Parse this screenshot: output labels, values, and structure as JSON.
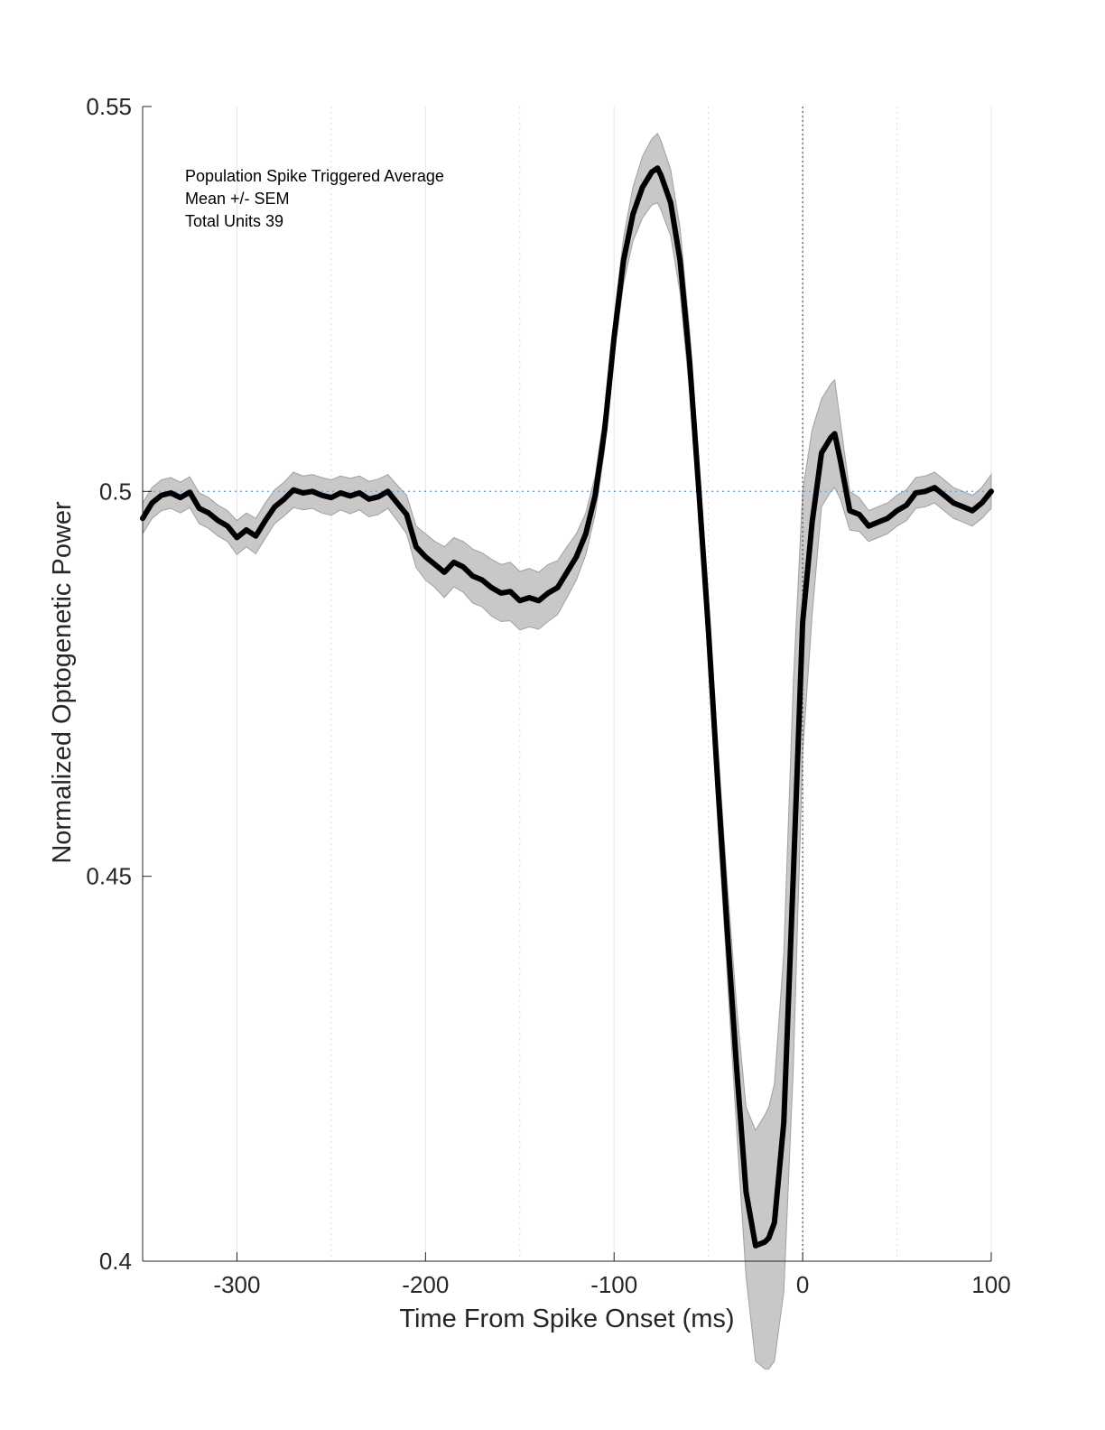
{
  "chart_data": {
    "type": "line",
    "title": "",
    "xlabel": "Time From Spike Onset (ms)",
    "ylabel": "Normalized Optogenetic Power",
    "xlim": [
      -350,
      100
    ],
    "ylim": [
      0.4,
      0.55
    ],
    "xticks": [
      -300,
      -200,
      -100,
      0,
      100
    ],
    "xtick_labels": [
      "-300",
      "-200",
      "-100",
      "0",
      "100"
    ],
    "yticks": [
      0.4,
      0.45,
      0.5,
      0.55
    ],
    "ytick_labels": [
      "0.4",
      "0.45",
      "0.5",
      "0.55"
    ],
    "grid": "vertical",
    "minor_grid_x": [
      -250,
      -150,
      -50,
      50
    ],
    "reference_line_y": 0.5,
    "reference_line_x": 0,
    "annotations": [
      "Population Spike Triggered Average",
      "Mean +/- SEM",
      "Total Units 39"
    ],
    "series": [
      {
        "style": "mean",
        "color": "#000000",
        "x": [
          -350,
          -345,
          -340,
          -335,
          -330,
          -325,
          -320,
          -315,
          -310,
          -305,
          -300,
          -295,
          -290,
          -285,
          -280,
          -275,
          -270,
          -265,
          -260,
          -255,
          -250,
          -245,
          -240,
          -235,
          -230,
          -225,
          -220,
          -215,
          -210,
          -205,
          -200,
          -195,
          -190,
          -185,
          -180,
          -175,
          -170,
          -165,
          -160,
          -155,
          -150,
          -145,
          -140,
          -135,
          -130,
          -125,
          -120,
          -115,
          -110,
          -105,
          -100,
          -95,
          -90,
          -85,
          -80,
          -77,
          -75,
          -70,
          -65,
          -60,
          -55,
          -50,
          -45,
          -40,
          -35,
          -30,
          -25,
          -20,
          -18,
          -15,
          -10,
          -5,
          0,
          5,
          10,
          15,
          17,
          20,
          25,
          30,
          35,
          40,
          45,
          50,
          55,
          60,
          65,
          70,
          75,
          80,
          85,
          90,
          95,
          100
        ],
        "values": [
          0.4965,
          0.4985,
          0.4995,
          0.4998,
          0.4992,
          0.4999,
          0.4978,
          0.4972,
          0.4962,
          0.4955,
          0.494,
          0.495,
          0.4942,
          0.4962,
          0.498,
          0.499,
          0.5002,
          0.4998,
          0.5,
          0.4995,
          0.4992,
          0.4998,
          0.4994,
          0.4998,
          0.499,
          0.4993,
          0.5,
          0.4985,
          0.497,
          0.4928,
          0.4915,
          0.4905,
          0.4895,
          0.4908,
          0.4902,
          0.489,
          0.4885,
          0.4875,
          0.4868,
          0.487,
          0.4858,
          0.4862,
          0.4858,
          0.4868,
          0.4875,
          0.4895,
          0.4915,
          0.4945,
          0.4995,
          0.508,
          0.52,
          0.53,
          0.536,
          0.5395,
          0.5415,
          0.542,
          0.541,
          0.5375,
          0.53,
          0.517,
          0.5,
          0.482,
          0.462,
          0.443,
          0.425,
          0.409,
          0.402,
          0.4025,
          0.403,
          0.405,
          0.418,
          0.45,
          0.483,
          0.496,
          0.505,
          0.507,
          0.5075,
          0.504,
          0.4975,
          0.497,
          0.4955,
          0.496,
          0.4965,
          0.4975,
          0.4982,
          0.4998,
          0.5,
          0.5005,
          0.4995,
          0.4985,
          0.498,
          0.4975,
          0.4985,
          0.5
        ]
      },
      {
        "style": "sem_upper",
        "color": "#c8c8c8",
        "x": [
          -350,
          -345,
          -340,
          -335,
          -330,
          -325,
          -320,
          -315,
          -310,
          -305,
          -300,
          -295,
          -290,
          -285,
          -280,
          -275,
          -270,
          -265,
          -260,
          -255,
          -250,
          -245,
          -240,
          -235,
          -230,
          -225,
          -220,
          -215,
          -210,
          -205,
          -200,
          -195,
          -190,
          -185,
          -180,
          -175,
          -170,
          -165,
          -160,
          -155,
          -150,
          -145,
          -140,
          -135,
          -130,
          -125,
          -120,
          -115,
          -110,
          -105,
          -100,
          -95,
          -90,
          -85,
          -80,
          -77,
          -75,
          -70,
          -65,
          -60,
          -55,
          -50,
          -45,
          -40,
          -35,
          -30,
          -25,
          -20,
          -18,
          -15,
          -10,
          -5,
          0,
          5,
          10,
          15,
          17,
          20,
          25,
          30,
          35,
          40,
          45,
          50,
          55,
          60,
          65,
          70,
          75,
          80,
          85,
          90,
          95,
          100
        ],
        "values": [
          0.4985,
          0.5005,
          0.5015,
          0.5018,
          0.5012,
          0.5019,
          0.4998,
          0.4992,
          0.4982,
          0.4975,
          0.4962,
          0.4972,
          0.4965,
          0.4985,
          0.5002,
          0.5012,
          0.5025,
          0.502,
          0.5022,
          0.5018,
          0.5015,
          0.502,
          0.5017,
          0.502,
          0.5013,
          0.5016,
          0.5022,
          0.5008,
          0.4995,
          0.4955,
          0.4945,
          0.4935,
          0.4928,
          0.494,
          0.4935,
          0.4925,
          0.492,
          0.4912,
          0.4905,
          0.4908,
          0.4896,
          0.49,
          0.4895,
          0.4905,
          0.491,
          0.4928,
          0.4945,
          0.4972,
          0.502,
          0.5105,
          0.5225,
          0.533,
          0.5395,
          0.5435,
          0.5458,
          0.5465,
          0.5455,
          0.5418,
          0.5342,
          0.521,
          0.504,
          0.4865,
          0.467,
          0.449,
          0.433,
          0.42,
          0.417,
          0.419,
          0.42,
          0.423,
          0.44,
          0.475,
          0.5,
          0.508,
          0.512,
          0.514,
          0.5145,
          0.509,
          0.5,
          0.4992,
          0.4975,
          0.498,
          0.4985,
          0.4995,
          0.5002,
          0.5018,
          0.502,
          0.5025,
          0.5015,
          0.5005,
          0.5,
          0.4995,
          0.5005,
          0.5022
        ]
      },
      {
        "style": "sem_lower",
        "color": "#c8c8c8",
        "x": [
          -350,
          -345,
          -340,
          -335,
          -330,
          -325,
          -320,
          -315,
          -310,
          -305,
          -300,
          -295,
          -290,
          -285,
          -280,
          -275,
          -270,
          -265,
          -260,
          -255,
          -250,
          -245,
          -240,
          -235,
          -230,
          -225,
          -220,
          -215,
          -210,
          -205,
          -200,
          -195,
          -190,
          -185,
          -180,
          -175,
          -170,
          -165,
          -160,
          -155,
          -150,
          -145,
          -140,
          -135,
          -130,
          -125,
          -120,
          -115,
          -110,
          -105,
          -100,
          -95,
          -90,
          -85,
          -80,
          -77,
          -75,
          -70,
          -65,
          -60,
          -55,
          -50,
          -45,
          -40,
          -35,
          -30,
          -25,
          -20,
          -18,
          -15,
          -10,
          -5,
          0,
          5,
          10,
          15,
          17,
          20,
          25,
          30,
          35,
          40,
          45,
          50,
          55,
          60,
          65,
          70,
          75,
          80,
          85,
          90,
          95,
          100
        ],
        "values": [
          0.4945,
          0.4965,
          0.4975,
          0.4978,
          0.4972,
          0.4979,
          0.4958,
          0.4952,
          0.4942,
          0.4935,
          0.4918,
          0.4928,
          0.4919,
          0.4939,
          0.4958,
          0.4968,
          0.4979,
          0.4976,
          0.4978,
          0.4972,
          0.4969,
          0.4976,
          0.4971,
          0.4976,
          0.4967,
          0.497,
          0.4978,
          0.4962,
          0.4945,
          0.4901,
          0.4885,
          0.4875,
          0.4862,
          0.4876,
          0.4869,
          0.4855,
          0.485,
          0.4838,
          0.4831,
          0.4832,
          0.482,
          0.4824,
          0.4821,
          0.4831,
          0.484,
          0.4862,
          0.4885,
          0.4918,
          0.497,
          0.5055,
          0.5175,
          0.527,
          0.5325,
          0.5355,
          0.5372,
          0.5375,
          0.5365,
          0.5332,
          0.5258,
          0.513,
          0.496,
          0.4775,
          0.457,
          0.437,
          0.417,
          0.398,
          0.387,
          0.386,
          0.386,
          0.387,
          0.396,
          0.425,
          0.466,
          0.484,
          0.498,
          0.5,
          0.5005,
          0.499,
          0.495,
          0.4948,
          0.4935,
          0.494,
          0.4945,
          0.4955,
          0.4962,
          0.4978,
          0.498,
          0.4985,
          0.4975,
          0.4965,
          0.496,
          0.4955,
          0.4965,
          0.4978
        ]
      }
    ]
  }
}
